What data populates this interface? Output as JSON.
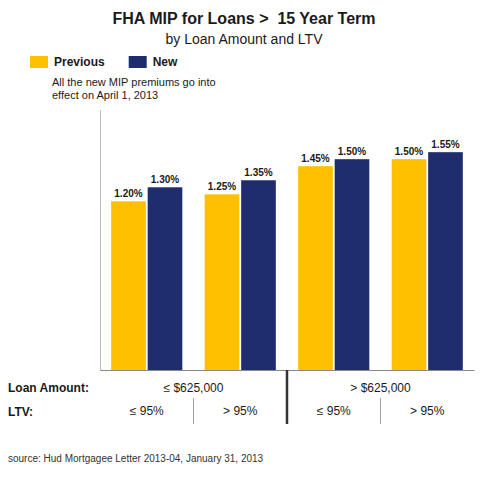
{
  "chart_data": {
    "type": "bar",
    "title": "FHA MIP for Loans >  15 Year Term",
    "subtitle": "by Loan Amount and LTV",
    "annotation": [
      "All the new MIP premiums go into",
      "effect on April 1, 2013"
    ],
    "source": "source: Hud Mortgagee Letter 2013-04, January 31, 2013",
    "x_label": "LTV:",
    "category_group_label": "Loan Amount:",
    "category_groups": [
      "≤ $625,000",
      "> $625,000"
    ],
    "categories": [
      "≤ 95%",
      "> 95%",
      "≤ 95%",
      "> 95%"
    ],
    "series": [
      {
        "name": "Previous",
        "color": "#FFC000",
        "values": [
          1.2,
          1.25,
          1.45,
          1.5
        ],
        "value_labels": [
          "1.20%",
          "1.25%",
          "1.45%",
          "1.50%"
        ]
      },
      {
        "name": "New",
        "color": "#1F2D6E",
        "values": [
          1.3,
          1.35,
          1.5,
          1.55
        ],
        "value_labels": [
          "1.30%",
          "1.35%",
          "1.50%",
          "1.55%"
        ]
      }
    ],
    "ylim": [
      0,
      1.85
    ],
    "legend": "top",
    "data_labels": true,
    "tick_labels": "x"
  }
}
